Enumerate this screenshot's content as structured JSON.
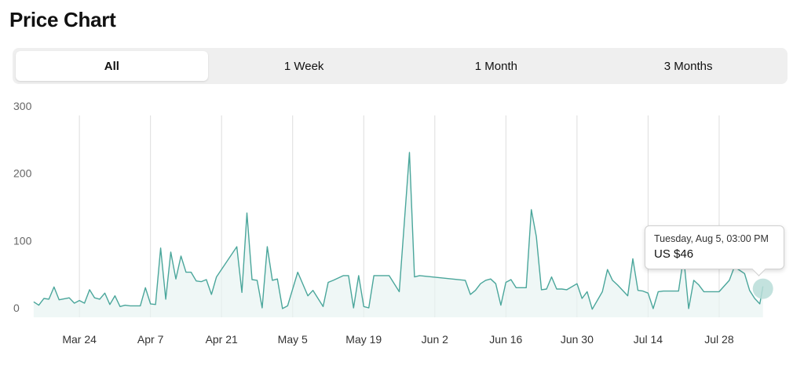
{
  "page_title": "Price Chart",
  "tabs": [
    {
      "label": "All",
      "active": true
    },
    {
      "label": "1 Week",
      "active": false
    },
    {
      "label": "1 Month",
      "active": false
    },
    {
      "label": "3 Months",
      "active": false
    }
  ],
  "tooltip": {
    "date": "Tuesday, Aug 5, 03:00 PM",
    "price": "US $46"
  },
  "colors": {
    "line": "#4aa69b",
    "fill": "#e8f4f2",
    "grid": "#dddddd",
    "marker": "#b9ddd8"
  },
  "chart_data": {
    "type": "area",
    "title": "",
    "xlabel": "",
    "ylabel": "",
    "ylim": [
      0,
      300
    ],
    "xlim": [
      "2025-03-13",
      "2025-08-10"
    ],
    "y_ticks": [
      0,
      100,
      200,
      300
    ],
    "x_ticks": [
      {
        "date": "2025-03-24",
        "label": "Mar 24"
      },
      {
        "date": "2025-04-07",
        "label": "Apr 7"
      },
      {
        "date": "2025-04-21",
        "label": "Apr 21"
      },
      {
        "date": "2025-05-05",
        "label": "May 5"
      },
      {
        "date": "2025-05-19",
        "label": "May 19"
      },
      {
        "date": "2025-06-02",
        "label": "Jun 2"
      },
      {
        "date": "2025-06-16",
        "label": "Jun 16"
      },
      {
        "date": "2025-06-30",
        "label": "Jun 30"
      },
      {
        "date": "2025-07-14",
        "label": "Jul 14"
      },
      {
        "date": "2025-07-28",
        "label": "Jul 28"
      }
    ],
    "grid": true,
    "highlight": {
      "x": "2025-08-05T15:00",
      "y": 46
    },
    "series": [
      {
        "points": [
          [
            "2025-03-15",
            23
          ],
          [
            "2025-03-16",
            18
          ],
          [
            "2025-03-17",
            28
          ],
          [
            "2025-03-18",
            27
          ],
          [
            "2025-03-19",
            45
          ],
          [
            "2025-03-20",
            26
          ],
          [
            "2025-03-22",
            29
          ],
          [
            "2025-03-23",
            21
          ],
          [
            "2025-03-24",
            25
          ],
          [
            "2025-03-25",
            21
          ],
          [
            "2025-03-26",
            41
          ],
          [
            "2025-03-27",
            29
          ],
          [
            "2025-03-28",
            27
          ],
          [
            "2025-03-29",
            36
          ],
          [
            "2025-03-30",
            19
          ],
          [
            "2025-03-31",
            32
          ],
          [
            "2025-04-01",
            16
          ],
          [
            "2025-04-02",
            18
          ],
          [
            "2025-04-03",
            17
          ],
          [
            "2025-04-04",
            17
          ],
          [
            "2025-04-05",
            17
          ],
          [
            "2025-04-06",
            44
          ],
          [
            "2025-04-07",
            20
          ],
          [
            "2025-04-08",
            19
          ],
          [
            "2025-04-09",
            103
          ],
          [
            "2025-04-10",
            27
          ],
          [
            "2025-04-11",
            97
          ],
          [
            "2025-04-12",
            57
          ],
          [
            "2025-04-13",
            91
          ],
          [
            "2025-04-14",
            67
          ],
          [
            "2025-04-15",
            67
          ],
          [
            "2025-04-16",
            54
          ],
          [
            "2025-04-17",
            53
          ],
          [
            "2025-04-18",
            56
          ],
          [
            "2025-04-19",
            34
          ],
          [
            "2025-04-20",
            60
          ],
          [
            "2025-04-24",
            105
          ],
          [
            "2025-04-25",
            37
          ],
          [
            "2025-04-26",
            155
          ],
          [
            "2025-04-27",
            56
          ],
          [
            "2025-04-28",
            55
          ],
          [
            "2025-04-29",
            14
          ],
          [
            "2025-04-30",
            105
          ],
          [
            "2025-05-01",
            55
          ],
          [
            "2025-05-02",
            57
          ],
          [
            "2025-05-03",
            13
          ],
          [
            "2025-05-04",
            17
          ],
          [
            "2025-05-06",
            67
          ],
          [
            "2025-05-08",
            32
          ],
          [
            "2025-05-09",
            40
          ],
          [
            "2025-05-11",
            16
          ],
          [
            "2025-05-12",
            52
          ],
          [
            "2025-05-13",
            55
          ],
          [
            "2025-05-15",
            62
          ],
          [
            "2025-05-16",
            62
          ],
          [
            "2025-05-17",
            14
          ],
          [
            "2025-05-18",
            62
          ],
          [
            "2025-05-19",
            16
          ],
          [
            "2025-05-20",
            14
          ],
          [
            "2025-05-21",
            62
          ],
          [
            "2025-05-22",
            62
          ],
          [
            "2025-05-23",
            62
          ],
          [
            "2025-05-24",
            62
          ],
          [
            "2025-05-26",
            38
          ],
          [
            "2025-05-28",
            245
          ],
          [
            "2025-05-29",
            60
          ],
          [
            "2025-05-30",
            62
          ],
          [
            "2025-06-08",
            55
          ],
          [
            "2025-06-09",
            34
          ],
          [
            "2025-06-10",
            40
          ],
          [
            "2025-06-11",
            50
          ],
          [
            "2025-06-12",
            55
          ],
          [
            "2025-06-13",
            57
          ],
          [
            "2025-06-14",
            50
          ],
          [
            "2025-06-15",
            18
          ],
          [
            "2025-06-16",
            52
          ],
          [
            "2025-06-17",
            56
          ],
          [
            "2025-06-18",
            44
          ],
          [
            "2025-06-19",
            44
          ],
          [
            "2025-06-20",
            44
          ],
          [
            "2025-06-21",
            160
          ],
          [
            "2025-06-22",
            120
          ],
          [
            "2025-06-23",
            41
          ],
          [
            "2025-06-24",
            42
          ],
          [
            "2025-06-25",
            60
          ],
          [
            "2025-06-26",
            42
          ],
          [
            "2025-06-27",
            42
          ],
          [
            "2025-06-28",
            41
          ],
          [
            "2025-06-30",
            50
          ],
          [
            "2025-07-01",
            28
          ],
          [
            "2025-07-02",
            38
          ],
          [
            "2025-07-03",
            12
          ],
          [
            "2025-07-05",
            38
          ],
          [
            "2025-07-06",
            71
          ],
          [
            "2025-07-07",
            55
          ],
          [
            "2025-07-08",
            48
          ],
          [
            "2025-07-10",
            32
          ],
          [
            "2025-07-11",
            87
          ],
          [
            "2025-07-12",
            40
          ],
          [
            "2025-07-13",
            39
          ],
          [
            "2025-07-14",
            36
          ],
          [
            "2025-07-15",
            13
          ],
          [
            "2025-07-16",
            38
          ],
          [
            "2025-07-17",
            39
          ],
          [
            "2025-07-18",
            39
          ],
          [
            "2025-07-19",
            39
          ],
          [
            "2025-07-20",
            39
          ],
          [
            "2025-07-21",
            90
          ],
          [
            "2025-07-22",
            13
          ],
          [
            "2025-07-23",
            55
          ],
          [
            "2025-07-24",
            48
          ],
          [
            "2025-07-25",
            38
          ],
          [
            "2025-07-26",
            38
          ],
          [
            "2025-07-27",
            38
          ],
          [
            "2025-07-28",
            38
          ],
          [
            "2025-07-30",
            55
          ],
          [
            "2025-07-31",
            75
          ],
          [
            "2025-08-01",
            70
          ],
          [
            "2025-08-02",
            65
          ],
          [
            "2025-08-03",
            40
          ],
          [
            "2025-08-04",
            28
          ],
          [
            "2025-08-05",
            20
          ],
          [
            "2025-08-05T15:00",
            46
          ]
        ]
      }
    ]
  }
}
